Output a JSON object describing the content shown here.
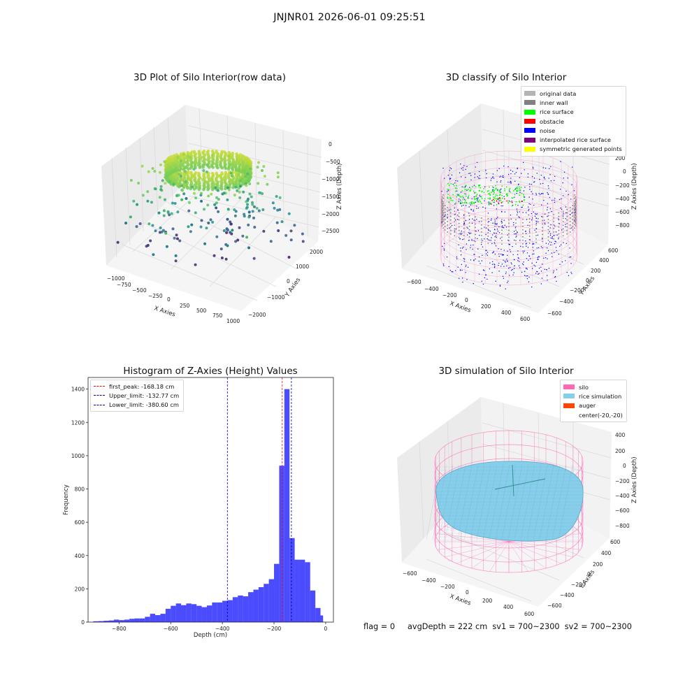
{
  "suptitle": "JNJNR01 2026-06-01 09:25:51",
  "panels": {
    "raw": {
      "title": "3D Plot of Silo Interior(row data)",
      "xlabel": "X Axies",
      "ylabel": "Y Axies",
      "zlabel": "Z Axies (Depth)",
      "xticks": [
        "−1000",
        "−750",
        "−500",
        "−250",
        "0",
        "250",
        "500",
        "750",
        "1000"
      ],
      "yticks": [
        "−2000",
        "−1000",
        "0",
        "1000",
        "2000"
      ],
      "zticks": [
        "0",
        "−500",
        "−1000",
        "−1500",
        "−2000",
        "−2500"
      ]
    },
    "classify": {
      "title": "3D classify of Silo Interior",
      "xlabel": "X Axies",
      "ylabel": "Y Axies",
      "zlabel": "Z Axies (Depth)",
      "xticks": [
        "−600",
        "−400",
        "−200",
        "0",
        "200",
        "400",
        "600"
      ],
      "yticks": [
        "−600",
        "−400",
        "−200",
        "0",
        "200",
        "400",
        "600"
      ],
      "zticks": [
        "200",
        "0",
        "−200",
        "−400",
        "−600",
        "−800"
      ],
      "legend": [
        {
          "label": "original data",
          "color": "#b3b3b3"
        },
        {
          "label": "inner wall",
          "color": "#808080"
        },
        {
          "label": "rice surface",
          "color": "#00ff00"
        },
        {
          "label": "obstacle",
          "color": "#ff0000"
        },
        {
          "label": "noise",
          "color": "#0000ff"
        },
        {
          "label": "interpolated rice surface",
          "color": "#800080"
        },
        {
          "label": "symmetric generated points",
          "color": "#ffff00"
        }
      ]
    },
    "simulation": {
      "title": "3D simulation of Silo Interior",
      "xlabel": "X Axies",
      "ylabel": "Y Axies",
      "zlabel": "Z Axies (Depth)",
      "xticks": [
        "−600",
        "−400",
        "−200",
        "0",
        "200",
        "400",
        "600"
      ],
      "yticks": [
        "−600",
        "−400",
        "−200",
        "0",
        "200",
        "400",
        "600"
      ],
      "zticks": [
        "400",
        "200",
        "0",
        "−200",
        "−400",
        "−600",
        "−800"
      ],
      "legend": [
        {
          "label": "silo",
          "color": "#ff69b4"
        },
        {
          "label": "rice simulation",
          "color": "#87ceeb"
        },
        {
          "label": "auger",
          "color": "#ff4500"
        },
        {
          "label": "center(-20,-20)",
          "color": ""
        }
      ]
    }
  },
  "status_line": "flag = 0     avgDepth = 222 cm  sv1 = 700~2300  sv2 = 700~2300",
  "chart_data": {
    "type": "bar",
    "title": "Histogram of Z-Axies (Height) Values",
    "xlabel": "Depth (cm)",
    "ylabel": "Frequency",
    "xlim": [
      -920,
      30
    ],
    "ylim": [
      0,
      1470
    ],
    "xticks": [
      -800,
      -600,
      -400,
      -200,
      0
    ],
    "yticks": [
      0,
      200,
      400,
      600,
      800,
      1000,
      1200,
      1400
    ],
    "bar_color": "#0000ff",
    "bin_edges": [
      -900,
      -880,
      -860,
      -840,
      -820,
      -800,
      -780,
      -760,
      -740,
      -720,
      -700,
      -680,
      -660,
      -640,
      -620,
      -600,
      -580,
      -560,
      -540,
      -520,
      -500,
      -480,
      -460,
      -440,
      -420,
      -400,
      -380,
      -360,
      -340,
      -320,
      -300,
      -280,
      -260,
      -240,
      -220,
      -200,
      -180,
      -160,
      -140,
      -120,
      -100,
      -80,
      -60,
      -40,
      -20,
      -10
    ],
    "counts": [
      5,
      6,
      8,
      10,
      15,
      12,
      15,
      20,
      22,
      22,
      32,
      50,
      42,
      50,
      80,
      98,
      112,
      102,
      112,
      108,
      98,
      90,
      100,
      118,
      118,
      128,
      132,
      150,
      160,
      155,
      180,
      195,
      210,
      230,
      258,
      350,
      940,
      1400,
      505,
      375,
      375,
      360,
      190,
      85,
      40
    ],
    "vlines": [
      {
        "label": "first_peak: -168.18 cm",
        "x": -168.18,
        "color": "#ff0000"
      },
      {
        "label": "Upper_limit: -132.77 cm",
        "x": -132.77,
        "color": "#0000aa"
      },
      {
        "label": "Lower_limit: -380.60 cm",
        "x": -380.6,
        "color": "#0000aa"
      }
    ],
    "legend_position": "upper-left"
  }
}
